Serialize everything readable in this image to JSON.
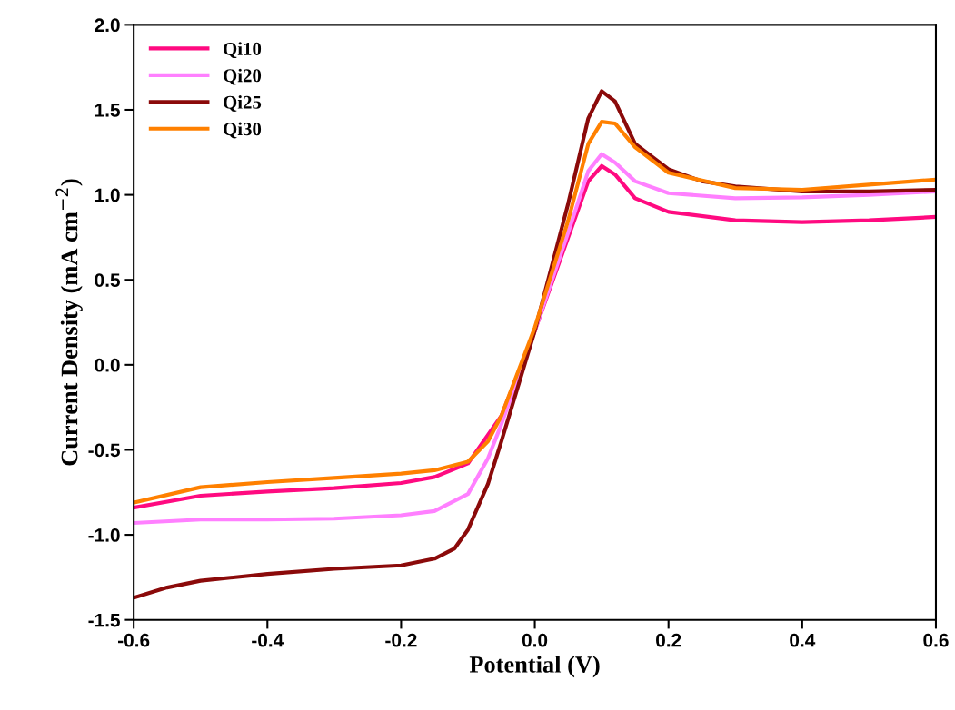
{
  "chart_data": {
    "type": "line",
    "xlabel": "Potential (V)",
    "ylabel": "Current Density (mA cm$^{−2}$)",
    "xlim": [
      -0.6,
      0.6
    ],
    "xticks": [
      {
        "value": -0.6,
        "label": "-0.6"
      },
      {
        "value": -0.4,
        "label": "-0.4"
      },
      {
        "value": -0.2,
        "label": "-0.2"
      },
      {
        "value": 0,
        "label": "0.0"
      },
      {
        "value": 0.2,
        "label": "0.2"
      },
      {
        "value": 0.4,
        "label": "0.4"
      },
      {
        "value": 0.6,
        "label": "0.6"
      }
    ],
    "ylim": [
      -1.5,
      2.0
    ],
    "yticks": [
      {
        "value": -1.5,
        "label": "-1.5"
      },
      {
        "value": -1.0,
        "label": "-1.0"
      },
      {
        "value": -0.5,
        "label": "-0.5"
      },
      {
        "value": 0,
        "label": "0.0"
      },
      {
        "value": 0.5,
        "label": "0.5"
      },
      {
        "value": 1.0,
        "label": "1.0"
      },
      {
        "value": 1.5,
        "label": "1.5"
      },
      {
        "value": 2.0,
        "label": "2.0"
      }
    ],
    "grid": false,
    "legend": "top left",
    "marker": "none",
    "line_style": "solid",
    "series": [
      {
        "name": "Qi10",
        "color": "#ff0a80",
        "x": [
          -0.6,
          -0.5,
          -0.4,
          -0.3,
          -0.2,
          -0.15,
          -0.1,
          -0.05,
          0,
          0.05,
          0.08,
          0.1,
          0.12,
          0.15,
          0.2,
          0.3,
          0.4,
          0.5,
          0.6
        ],
        "values": [
          -0.84,
          -0.77,
          -0.745,
          -0.725,
          -0.695,
          -0.66,
          -0.58,
          -0.3,
          0.2,
          0.75,
          1.08,
          1.17,
          1.12,
          0.98,
          0.9,
          0.85,
          0.84,
          0.85,
          0.87
        ]
      },
      {
        "name": "Qi20",
        "color": "#ff80ff",
        "x": [
          -0.6,
          -0.5,
          -0.4,
          -0.3,
          -0.2,
          -0.15,
          -0.1,
          -0.07,
          -0.05,
          0,
          0.05,
          0.08,
          0.1,
          0.12,
          0.15,
          0.2,
          0.3,
          0.4,
          0.5,
          0.6
        ],
        "values": [
          -0.93,
          -0.91,
          -0.91,
          -0.905,
          -0.885,
          -0.86,
          -0.76,
          -0.55,
          -0.35,
          0.2,
          0.78,
          1.14,
          1.24,
          1.19,
          1.08,
          1.01,
          0.98,
          0.985,
          1.0,
          1.02
        ]
      },
      {
        "name": "Qi25",
        "color": "#8b0a0a",
        "x": [
          -0.6,
          -0.55,
          -0.5,
          -0.4,
          -0.3,
          -0.2,
          -0.15,
          -0.12,
          -0.1,
          -0.07,
          -0.05,
          0,
          0.05,
          0.08,
          0.1,
          0.12,
          0.15,
          0.2,
          0.25,
          0.3,
          0.4,
          0.5,
          0.6
        ],
        "values": [
          -1.37,
          -1.31,
          -1.27,
          -1.23,
          -1.2,
          -1.18,
          -1.14,
          -1.08,
          -0.97,
          -0.7,
          -0.45,
          0.2,
          0.95,
          1.45,
          1.61,
          1.55,
          1.3,
          1.15,
          1.08,
          1.05,
          1.02,
          1.02,
          1.03
        ]
      },
      {
        "name": "Qi30",
        "color": "#ff8000",
        "x": [
          -0.6,
          -0.5,
          -0.4,
          -0.3,
          -0.2,
          -0.15,
          -0.1,
          -0.07,
          -0.05,
          0,
          0.05,
          0.08,
          0.1,
          0.12,
          0.15,
          0.2,
          0.3,
          0.4,
          0.5,
          0.6
        ],
        "values": [
          -0.81,
          -0.72,
          -0.69,
          -0.665,
          -0.64,
          -0.62,
          -0.57,
          -0.45,
          -0.3,
          0.22,
          0.85,
          1.3,
          1.43,
          1.42,
          1.28,
          1.13,
          1.04,
          1.03,
          1.06,
          1.09
        ]
      }
    ]
  }
}
